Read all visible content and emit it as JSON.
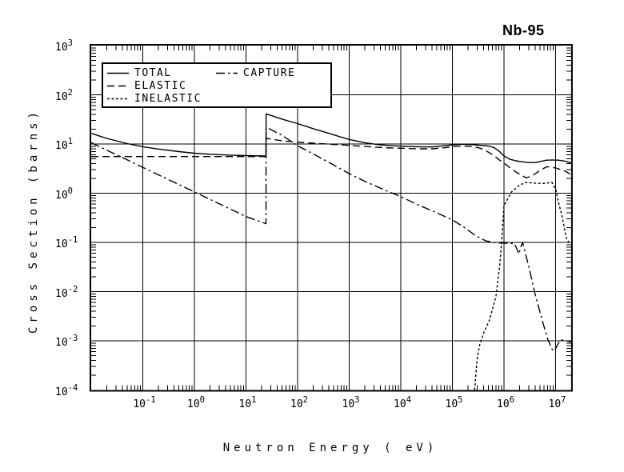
{
  "title": "Nb-95",
  "axes": {
    "x_label": "Neutron Energy ( eV)",
    "y_label": "Cross Section (barns)",
    "x_ticks": [
      {
        "base": "10",
        "exp": -1
      },
      {
        "base": "10",
        "exp": 0
      },
      {
        "base": "10",
        "exp": 1
      },
      {
        "base": "10",
        "exp": 2
      },
      {
        "base": "10",
        "exp": 3
      },
      {
        "base": "10",
        "exp": 4
      },
      {
        "base": "10",
        "exp": 5
      },
      {
        "base": "10",
        "exp": 6
      },
      {
        "base": "10",
        "exp": 7
      }
    ],
    "y_ticks": [
      {
        "base": "10",
        "exp": 3
      },
      {
        "base": "10",
        "exp": 2
      },
      {
        "base": "10",
        "exp": 1
      },
      {
        "base": "10",
        "exp": 0
      },
      {
        "base": "10",
        "exp": -1
      },
      {
        "base": "10",
        "exp": -2
      },
      {
        "base": "10",
        "exp": -3
      },
      {
        "base": "10",
        "exp": -4
      }
    ]
  },
  "legend": {
    "entries": [
      {
        "label": "TOTAL",
        "style": "solid"
      },
      {
        "label": "ELASTIC",
        "style": "dash"
      },
      {
        "label": "INELASTIC",
        "style": "dot"
      },
      {
        "label": "CAPTURE",
        "style": "dashdot"
      }
    ]
  },
  "chart_data": {
    "type": "line",
    "title": "Nb-95",
    "xlabel": "Neutron Energy ( eV)",
    "ylabel": "Cross Section (barns)",
    "x_scale": "log",
    "y_scale": "log",
    "xlim": [
      0.01,
      20000000
    ],
    "ylim": [
      0.0001,
      1000
    ],
    "grid": true,
    "legend_position": "upper-left-inside",
    "line_color": "#000000",
    "series": [
      {
        "name": "TOTAL",
        "style": "solid",
        "points": [
          [
            0.01,
            16.5
          ],
          [
            0.02,
            13
          ],
          [
            0.05,
            10.2
          ],
          [
            0.1,
            8.8
          ],
          [
            0.2,
            7.9
          ],
          [
            0.5,
            7.0
          ],
          [
            1,
            6.5
          ],
          [
            2,
            6.2
          ],
          [
            5,
            5.95
          ],
          [
            10,
            5.8
          ],
          [
            24.4,
            5.7
          ],
          [
            24.5,
            41
          ],
          [
            50,
            32
          ],
          [
            100,
            26
          ],
          [
            200,
            20.5
          ],
          [
            400,
            16.5
          ],
          [
            700,
            13.8
          ],
          [
            1000,
            12.4
          ],
          [
            2000,
            10.6
          ],
          [
            4000,
            9.6
          ],
          [
            7000,
            9.2
          ],
          [
            10000,
            9.05
          ],
          [
            20000,
            8.8
          ],
          [
            40000,
            8.7
          ],
          [
            70000,
            9.2
          ],
          [
            100000,
            9.6
          ],
          [
            150000,
            9.9
          ],
          [
            250000,
            9.7
          ],
          [
            350000,
            9.4
          ],
          [
            500000,
            9.1
          ],
          [
            650000,
            8.4
          ],
          [
            800000,
            7.2
          ],
          [
            1000000,
            5.7
          ],
          [
            1300000,
            4.9
          ],
          [
            1700000,
            4.55
          ],
          [
            2200000,
            4.35
          ],
          [
            3000000,
            4.2
          ],
          [
            4000000,
            4.2
          ],
          [
            5000000,
            4.4
          ],
          [
            6700000,
            4.7
          ],
          [
            10000000,
            4.75
          ],
          [
            13000000,
            4.6
          ],
          [
            17000000,
            4.35
          ],
          [
            20000000,
            4.1
          ]
        ]
      },
      {
        "name": "ELASTIC",
        "style": "dash",
        "points": [
          [
            0.01,
            5.55
          ],
          [
            24.4,
            5.55
          ],
          [
            24.5,
            13
          ],
          [
            50,
            11.6
          ],
          [
            100,
            10.9
          ],
          [
            200,
            10.4
          ],
          [
            500,
            9.8
          ],
          [
            1000,
            9.4
          ],
          [
            2000,
            8.9
          ],
          [
            5000,
            8.4
          ],
          [
            10000,
            8.2
          ],
          [
            20000,
            8.0
          ],
          [
            40000,
            8.0
          ],
          [
            70000,
            8.4
          ],
          [
            100000,
            8.8
          ],
          [
            150000,
            9.1
          ],
          [
            250000,
            8.9
          ],
          [
            320000,
            8.4
          ],
          [
            400000,
            7.8
          ],
          [
            500000,
            6.8
          ],
          [
            630000,
            5.9
          ],
          [
            800000,
            4.8
          ],
          [
            1000000,
            4.1
          ],
          [
            1300000,
            3.3
          ],
          [
            1800000,
            2.6
          ],
          [
            2700000,
            2.05
          ],
          [
            3500000,
            2.25
          ],
          [
            5000000,
            2.9
          ],
          [
            6700000,
            3.45
          ],
          [
            8000000,
            3.4
          ],
          [
            10000000,
            3.25
          ],
          [
            13000000,
            3.0
          ],
          [
            16000000,
            2.75
          ],
          [
            20000000,
            2.35
          ]
        ]
      },
      {
        "name": "INELASTIC",
        "style": "dot",
        "points": [
          [
            270000,
            0.0001
          ],
          [
            300000,
            0.00041
          ],
          [
            340000,
            0.00086
          ],
          [
            410000,
            0.0015
          ],
          [
            520000,
            0.0026
          ],
          [
            700000,
            0.0081
          ],
          [
            830000,
            0.036
          ],
          [
            900000,
            0.1
          ],
          [
            1000000,
            0.56
          ],
          [
            1400000,
            1.06
          ],
          [
            2000000,
            1.45
          ],
          [
            2600000,
            1.66
          ],
          [
            4000000,
            1.6
          ],
          [
            6000000,
            1.58
          ],
          [
            8500000,
            1.66
          ],
          [
            10200000,
            1.14
          ],
          [
            11300000,
            0.67
          ],
          [
            13000000,
            0.385
          ],
          [
            14500000,
            0.22
          ],
          [
            16000000,
            0.125
          ],
          [
            18700000,
            0.093
          ]
        ]
      },
      {
        "name": "CAPTURE",
        "style": "dashdot",
        "points": [
          [
            0.01,
            10.6
          ],
          [
            0.02,
            7.5
          ],
          [
            0.05,
            4.75
          ],
          [
            0.1,
            3.35
          ],
          [
            0.2,
            2.37
          ],
          [
            0.5,
            1.5
          ],
          [
            1,
            1.06
          ],
          [
            2,
            0.75
          ],
          [
            5,
            0.475
          ],
          [
            10,
            0.335
          ],
          [
            24.4,
            0.24
          ],
          [
            24.5,
            22
          ],
          [
            50,
            15
          ],
          [
            100,
            9.2
          ],
          [
            200,
            6.3
          ],
          [
            550,
            3.55
          ],
          [
            1000,
            2.5
          ],
          [
            2000,
            1.75
          ],
          [
            5000,
            1.15
          ],
          [
            10000,
            0.85
          ],
          [
            20000,
            0.6
          ],
          [
            50000,
            0.4
          ],
          [
            100000,
            0.285
          ],
          [
            150000,
            0.22
          ],
          [
            220000,
            0.165
          ],
          [
            300000,
            0.132
          ],
          [
            450000,
            0.107
          ],
          [
            700000,
            0.098
          ],
          [
            1100000,
            0.096
          ],
          [
            1600000,
            0.095
          ],
          [
            1800000,
            0.07
          ],
          [
            1950000,
            0.058
          ],
          [
            2100000,
            0.08
          ],
          [
            2300000,
            0.1
          ],
          [
            3000000,
            0.033
          ],
          [
            4000000,
            0.009
          ],
          [
            5500000,
            0.0026
          ],
          [
            7000000,
            0.0011
          ],
          [
            8500000,
            0.00068
          ],
          [
            9500000,
            0.00062
          ],
          [
            11000000,
            0.00085
          ],
          [
            12500000,
            0.00105
          ],
          [
            15000000,
            0.00102
          ],
          [
            20000000,
            0.00095
          ]
        ]
      }
    ]
  }
}
